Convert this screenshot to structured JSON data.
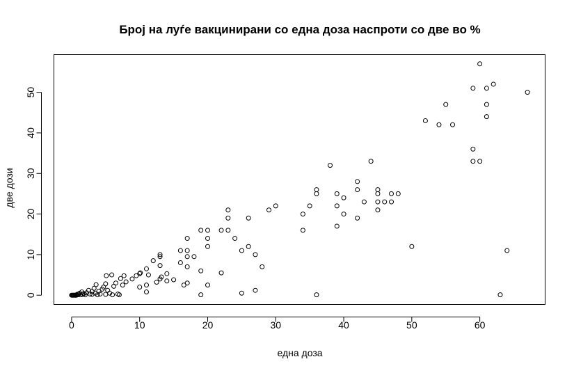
{
  "chart_data": {
    "type": "scatter",
    "title": "Број на луѓе вакцинирани со една доза наспроти со две во %",
    "xlabel": "една доза",
    "ylabel": "две дози",
    "xlim": [
      -2.6,
      69.6
    ],
    "ylim": [
      -2.28,
      59.28
    ],
    "xticks": [
      0,
      10,
      20,
      30,
      40,
      50,
      60
    ],
    "yticks": [
      0,
      10,
      20,
      30,
      40,
      50
    ],
    "grid": false,
    "marker": "open-circle",
    "point_color": "#000000",
    "series": [
      {
        "points": [
          [
            0,
            0
          ],
          [
            0.1,
            0
          ],
          [
            0.2,
            0
          ],
          [
            0.3,
            0
          ],
          [
            0.4,
            0
          ],
          [
            0.5,
            0
          ],
          [
            0.6,
            0
          ],
          [
            0.7,
            0
          ],
          [
            0.8,
            0.2
          ],
          [
            0.9,
            0.1
          ],
          [
            1.0,
            0.3
          ],
          [
            1.2,
            0.5
          ],
          [
            1.3,
            0.1
          ],
          [
            1.5,
            0.8
          ],
          [
            1.6,
            0.2
          ],
          [
            1.8,
            0.4
          ],
          [
            2.0,
            0.1
          ],
          [
            2.2,
            0.6
          ],
          [
            2.5,
            1.2
          ],
          [
            2.7,
            0.3
          ],
          [
            3.0,
            0.9
          ],
          [
            3.0,
            0.2
          ],
          [
            3.3,
            1.7
          ],
          [
            3.5,
            0.5
          ],
          [
            3.6,
            2.6
          ],
          [
            3.8,
            0.1
          ],
          [
            4.0,
            1.0
          ],
          [
            4.2,
            0.3
          ],
          [
            4.5,
            1.5
          ],
          [
            4.7,
            2.0
          ],
          [
            5.0,
            0.2
          ],
          [
            5.0,
            2.8
          ],
          [
            5.1,
            4.8
          ],
          [
            5.3,
            1.2
          ],
          [
            5.6,
            0.5
          ],
          [
            5.9,
            5.0
          ],
          [
            6.0,
            0.1
          ],
          [
            6.2,
            2.2
          ],
          [
            6.5,
            3.0
          ],
          [
            6.8,
            0.3
          ],
          [
            7.0,
            0.1
          ],
          [
            7.2,
            4.1
          ],
          [
            7.5,
            2.5
          ],
          [
            7.7,
            4.8
          ],
          [
            8.0,
            3.3
          ],
          [
            8.9,
            4.0
          ],
          [
            9.5,
            4.8
          ],
          [
            10.0,
            5.3
          ],
          [
            10.0,
            2.0
          ],
          [
            10.1,
            5.5
          ],
          [
            11.0,
            6.5
          ],
          [
            11.0,
            2.5
          ],
          [
            11.0,
            0.8
          ],
          [
            11.3,
            5.0
          ],
          [
            12.0,
            8.5
          ],
          [
            12.5,
            3.2
          ],
          [
            13.0,
            9.5
          ],
          [
            13.0,
            10.0
          ],
          [
            13.0,
            7.3
          ],
          [
            13.0,
            4.0
          ],
          [
            13.2,
            4.5
          ],
          [
            14.0,
            5.3
          ],
          [
            14.0,
            3.5
          ],
          [
            15.0,
            3.8
          ],
          [
            16.0,
            11.0
          ],
          [
            16.0,
            8.0
          ],
          [
            16.5,
            2.5
          ],
          [
            17.0,
            14.0
          ],
          [
            17.0,
            11.0
          ],
          [
            17.0,
            9.5
          ],
          [
            17.0,
            7.0
          ],
          [
            17.0,
            3.0
          ],
          [
            18.0,
            9.5
          ],
          [
            19.0,
            16.0
          ],
          [
            19.0,
            6.0
          ],
          [
            19.0,
            0.1
          ],
          [
            20.0,
            16.0
          ],
          [
            20.0,
            14.0
          ],
          [
            20.0,
            12.0
          ],
          [
            20.0,
            2.5
          ],
          [
            22.0,
            16.0
          ],
          [
            22.0,
            5.5
          ],
          [
            23.0,
            21.0
          ],
          [
            23.0,
            19.0
          ],
          [
            23.0,
            16.0
          ],
          [
            24.0,
            14.0
          ],
          [
            25.0,
            11.0
          ],
          [
            25.0,
            0.5
          ],
          [
            26.0,
            19.0
          ],
          [
            26.0,
            12.0
          ],
          [
            27.0,
            10.0
          ],
          [
            27.0,
            1.2
          ],
          [
            28.0,
            7.0
          ],
          [
            29.0,
            21.0
          ],
          [
            30.0,
            22.0
          ],
          [
            34.0,
            20.0
          ],
          [
            34.0,
            16.0
          ],
          [
            35.0,
            22.0
          ],
          [
            36.0,
            26.0
          ],
          [
            36.0,
            25.0
          ],
          [
            36.0,
            0.1
          ],
          [
            38.0,
            32.0
          ],
          [
            39.0,
            25.0
          ],
          [
            39.0,
            22.0
          ],
          [
            39.0,
            17.0
          ],
          [
            40.0,
            24.0
          ],
          [
            40.0,
            20.0
          ],
          [
            42.0,
            28.0
          ],
          [
            42.0,
            26.0
          ],
          [
            42.0,
            19.0
          ],
          [
            43.0,
            23.0
          ],
          [
            44.0,
            33.0
          ],
          [
            45.0,
            26.0
          ],
          [
            45.0,
            25.0
          ],
          [
            45.0,
            23.0
          ],
          [
            45.0,
            21.0
          ],
          [
            46.0,
            23.0
          ],
          [
            47.0,
            25.0
          ],
          [
            47.0,
            23.0
          ],
          [
            48.0,
            25.0
          ],
          [
            50.0,
            12.0
          ],
          [
            52.0,
            43.0
          ],
          [
            54.0,
            42.0
          ],
          [
            55.0,
            47.0
          ],
          [
            56.0,
            42.0
          ],
          [
            59.0,
            51.0
          ],
          [
            59.0,
            36.0
          ],
          [
            59.0,
            33.0
          ],
          [
            60.0,
            57.0
          ],
          [
            60.0,
            33.0
          ],
          [
            61.0,
            51.0
          ],
          [
            61.0,
            47.0
          ],
          [
            61.0,
            44.0
          ],
          [
            62.0,
            52.0
          ],
          [
            63.0,
            0.1
          ],
          [
            64.0,
            11.0
          ],
          [
            67.0,
            50.0
          ]
        ]
      }
    ]
  }
}
